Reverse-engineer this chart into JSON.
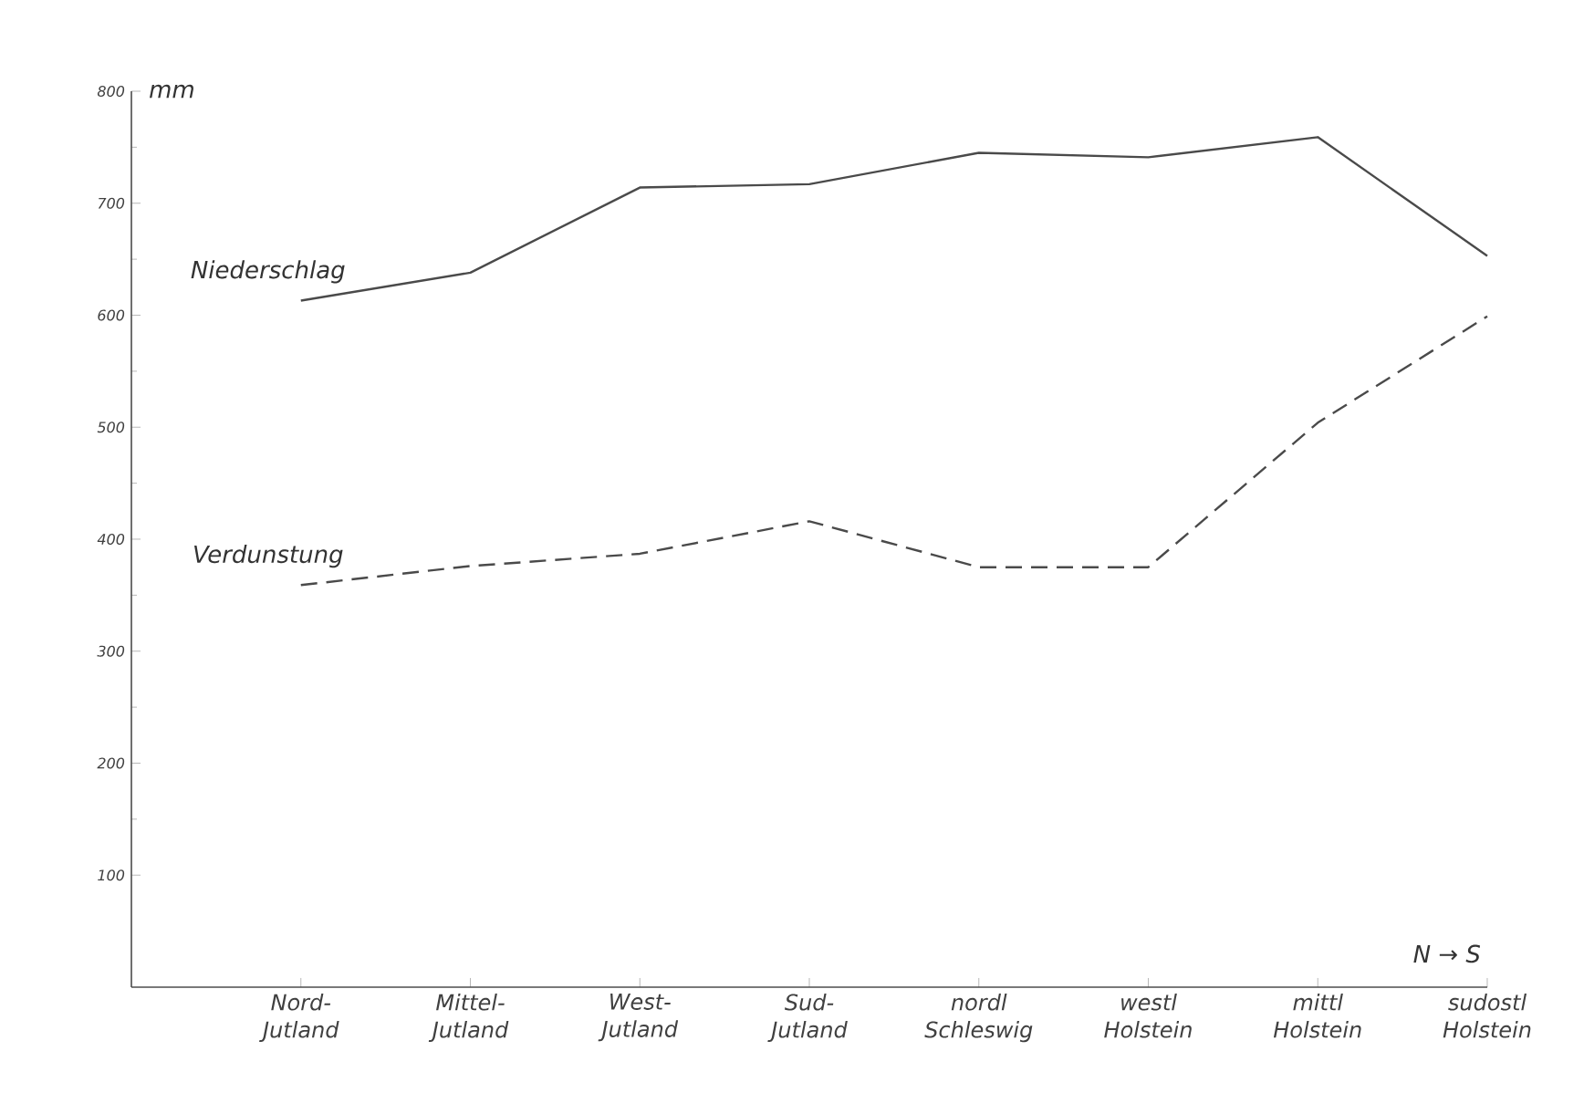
{
  "chart_data": {
    "type": "line",
    "ylabel": "mm",
    "categories": [
      "Nord- Jutland",
      "Mittel- Jutland",
      "West- Jutland",
      "Sud- Jutland",
      "nordl Schleswig",
      "westl Holstein",
      "mittl Holstein",
      "sudostl Holstein"
    ],
    "series": [
      {
        "name": "Niederschlag",
        "color": "#4a4a4a",
        "line_style": "solid",
        "values": [
          613,
          638,
          714,
          717,
          745,
          741,
          759,
          653
        ]
      },
      {
        "name": "Verdunstung",
        "color": "#4a4a4a",
        "line_style": "dashed",
        "values": [
          359,
          376,
          387,
          416,
          375,
          375,
          504,
          599
        ]
      }
    ],
    "ylim": [
      0,
      800
    ],
    "yticks": [
      100,
      200,
      300,
      400,
      500,
      600,
      700,
      800
    ],
    "grid": false,
    "legend": false,
    "marker": "none",
    "annotations": [
      "N → S"
    ]
  }
}
